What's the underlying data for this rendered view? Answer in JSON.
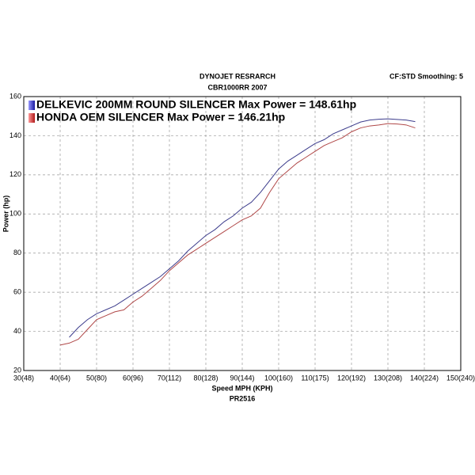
{
  "chart_data": {
    "type": "line",
    "title": "DYNOJET RESRARCH",
    "subtitle": "CBR1000RR 2007",
    "annotation": "CF:STD Smoothing: 5",
    "x_label": "Speed MPH (KPH)",
    "x_label_2": "PR2516",
    "y_label": "Power (hp)",
    "x": [
      40,
      42.5,
      45,
      47.5,
      50,
      52.5,
      55,
      57.5,
      60,
      62.5,
      65,
      67.5,
      70,
      72.5,
      75,
      77.5,
      80,
      82.5,
      85,
      87.5,
      90,
      92.5,
      95,
      97.5,
      100,
      102.5,
      105,
      107.5,
      110,
      112.5,
      115,
      117.5,
      120,
      122.5,
      125,
      127.5,
      130,
      132.5,
      135,
      137.5
    ],
    "series": [
      {
        "name": "DELKEVIC 200MM ROUND SILENCER Max Power = 148.61hp",
        "color": "#3c3c8c",
        "values": [
          null,
          37,
          42,
          46,
          49,
          51,
          53,
          56,
          59,
          62,
          65,
          68,
          72,
          76,
          81,
          85,
          89,
          92,
          96,
          99,
          103,
          106,
          111,
          117,
          123,
          127,
          130,
          133,
          136,
          138,
          141,
          143,
          145,
          147,
          148,
          148.4,
          148.6,
          148.3,
          148,
          147.2
        ]
      },
      {
        "name": "HONDA OEM SILENCER Max Power = 146.21hp",
        "color": "#b04848",
        "values": [
          33,
          34,
          36,
          41,
          46,
          48,
          50,
          51,
          55,
          58,
          62,
          66,
          71,
          75,
          79,
          82,
          85,
          88,
          91,
          94,
          97,
          99,
          103,
          111,
          118,
          122,
          126,
          129,
          132,
          135,
          137,
          139,
          142,
          144,
          145,
          145.5,
          146.2,
          146,
          145.5,
          144
        ]
      }
    ],
    "xlim": [
      30,
      150
    ],
    "ylim": [
      20,
      160
    ],
    "xticks": [
      {
        "value": 30,
        "label": "30(48)"
      },
      {
        "value": 40,
        "label": "40(64)"
      },
      {
        "value": 50,
        "label": "50(80)"
      },
      {
        "value": 60,
        "label": "60(96)"
      },
      {
        "value": 70,
        "label": "70(112)"
      },
      {
        "value": 80,
        "label": "80(128)"
      },
      {
        "value": 90,
        "label": "90(144)"
      },
      {
        "value": 100,
        "label": "100(160)"
      },
      {
        "value": 110,
        "label": "110(175)"
      },
      {
        "value": 120,
        "label": "120(192)"
      },
      {
        "value": 130,
        "label": "130(208)"
      },
      {
        "value": 140,
        "label": "140(224)"
      },
      {
        "value": 150,
        "label": "150(240)"
      }
    ],
    "yticks": [
      20,
      40,
      60,
      80,
      100,
      120,
      140,
      160
    ],
    "grid": true
  }
}
